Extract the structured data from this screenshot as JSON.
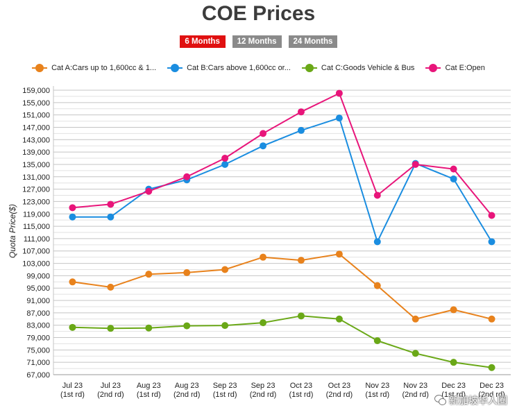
{
  "title": "COE Prices",
  "range_buttons": [
    {
      "label": "6 Months",
      "active": true
    },
    {
      "label": "12 Months",
      "active": false
    },
    {
      "label": "24 Months",
      "active": false
    }
  ],
  "watermark": "新加坡华人圈",
  "chart_data": {
    "type": "line",
    "title": "COE Prices",
    "xlabel": "",
    "ylabel": "Quota Price($)",
    "ylim": [
      67000,
      159000
    ],
    "ytick_step": 4000,
    "grid": true,
    "legend_position": "top",
    "categories": [
      [
        "Jul 23",
        "(1st rd)"
      ],
      [
        "Jul 23",
        "(2nd rd)"
      ],
      [
        "Aug 23",
        "(1st rd)"
      ],
      [
        "Aug 23",
        "(2nd rd)"
      ],
      [
        "Sep 23",
        "(1st rd)"
      ],
      [
        "Sep 23",
        "(2nd rd)"
      ],
      [
        "Oct 23",
        "(1st rd)"
      ],
      [
        "Oct 23",
        "(2nd rd)"
      ],
      [
        "Nov 23",
        "(1st rd)"
      ],
      [
        "Nov 23",
        "(2nd rd)"
      ],
      [
        "Dec 23",
        "(1st rd)"
      ],
      [
        "Dec 23",
        "(2nd rd)"
      ]
    ],
    "series": [
      {
        "name": "Cat A:Cars up to 1,600cc & 1...",
        "color": "#e8821c",
        "values": [
          97000,
          95300,
          99500,
          100000,
          101000,
          105000,
          104000,
          106000,
          95800,
          85000,
          88000,
          85000
        ]
      },
      {
        "name": "Cat B:Cars above 1,600cc or...",
        "color": "#1a8de0",
        "values": [
          118000,
          118000,
          127000,
          130000,
          135000,
          141000,
          146000,
          150000,
          110000,
          135300,
          130300,
          110000
        ]
      },
      {
        "name": "Cat C:Goods Vehicle & Bus",
        "color": "#6aa817",
        "values": [
          82300,
          82000,
          82100,
          82800,
          82900,
          83800,
          86000,
          85000,
          78000,
          73900,
          71000,
          69300
        ]
      },
      {
        "name": "Cat E:Open",
        "color": "#e8157a",
        "values": [
          121000,
          122100,
          126300,
          131000,
          137000,
          145000,
          152000,
          158000,
          125000,
          135000,
          133500,
          118500
        ]
      }
    ]
  }
}
